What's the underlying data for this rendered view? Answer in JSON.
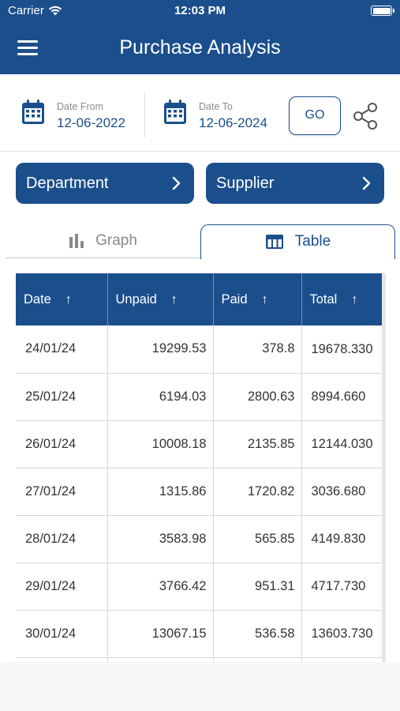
{
  "status_bar": {
    "carrier": "Carrier",
    "time": "12:03 PM"
  },
  "header": {
    "title": "Purchase Analysis"
  },
  "date_from": {
    "label": "Date From",
    "value": "12-06-2022"
  },
  "date_to": {
    "label": "Date To",
    "value": "12-06-2024"
  },
  "go_label": "GO",
  "filters": {
    "department": "Department",
    "supplier": "Supplier"
  },
  "tabs": {
    "graph": "Graph",
    "table": "Table",
    "active": "Table"
  },
  "table": {
    "headers": [
      "Date",
      "Unpaid",
      "Paid",
      "Total"
    ],
    "rows": [
      [
        "24/01/24",
        "19299.53",
        "378.8",
        "19678.330"
      ],
      [
        "25/01/24",
        "6194.03",
        "2800.63",
        "8994.660"
      ],
      [
        "26/01/24",
        "10008.18",
        "2135.85",
        "12144.030"
      ],
      [
        "27/01/24",
        "1315.86",
        "1720.82",
        "3036.680"
      ],
      [
        "28/01/24",
        "3583.98",
        "565.85",
        "4149.830"
      ],
      [
        "29/01/24",
        "3766.42",
        "951.31",
        "4717.730"
      ],
      [
        "30/01/24",
        "13067.15",
        "536.58",
        "13603.730"
      ],
      [
        "",
        "",
        "",
        ""
      ]
    ]
  },
  "colors": {
    "primary": "#1b4f8c",
    "background": "#ffffff",
    "muted": "#8a8a8a"
  }
}
